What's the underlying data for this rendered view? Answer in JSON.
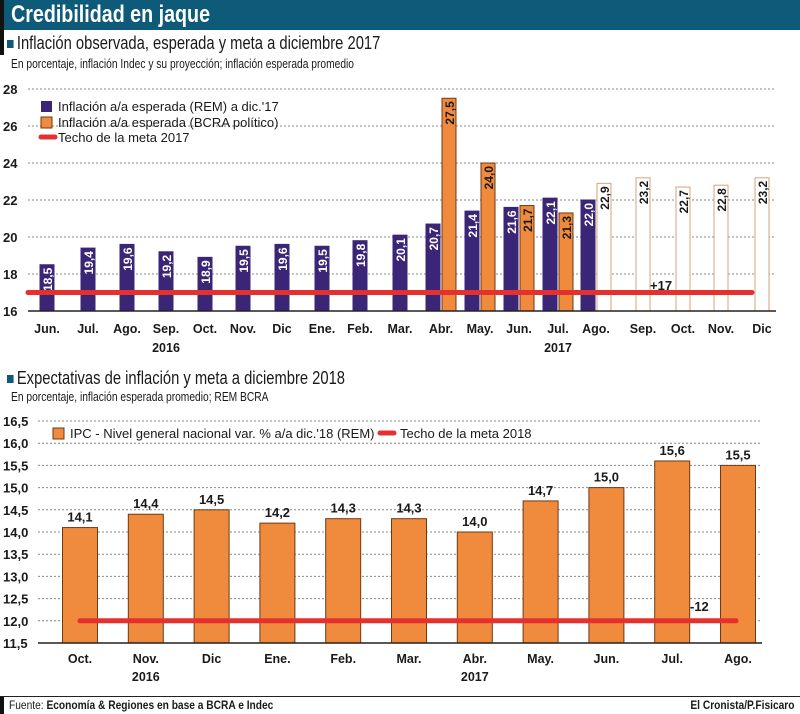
{
  "title": "Credibilidad en jaque",
  "colors": {
    "purple": "#3a2577",
    "orange": "#f08a3c",
    "red": "#e53030",
    "header": "#0d5b78",
    "projection_border": "#d7a27a"
  },
  "chart_data": [
    {
      "type": "bar",
      "title": "Inflación observada, esperada y meta a diciembre 2017",
      "subtitle": "En porcentaje, inflación Indec y su proyección; inflación esperada promedio",
      "categories": [
        "Jun.",
        "Jul.",
        "Ago.",
        "Sep.",
        "Oct.",
        "Nov.",
        "Dic",
        "Ene.",
        "Feb.",
        "Mar.",
        "Abr.",
        "May.",
        "Jun.",
        "Jul.",
        "Ago.",
        "Sep.",
        "Oct.",
        "Nov.",
        "Dic"
      ],
      "year_labels": [
        {
          "category_index": 3,
          "label": "2016"
        },
        {
          "category_index": 13,
          "label": "2017"
        }
      ],
      "ylim": [
        16,
        28
      ],
      "yticks": [
        16,
        18,
        20,
        22,
        24,
        26,
        28
      ],
      "grid": true,
      "legend_position": "top-left",
      "series": [
        {
          "name": "Inflación a/a esperada (REM) a dic.'17",
          "style": "purple",
          "values": [
            18.5,
            19.4,
            19.6,
            19.2,
            18.9,
            19.5,
            19.6,
            19.5,
            19.8,
            20.1,
            20.7,
            21.4,
            21.6,
            22.1,
            22.0,
            null,
            null,
            null,
            null
          ],
          "labels": [
            "18,5",
            "19,4",
            "19,6",
            "19,2",
            "18,9",
            "19,5",
            "19,6",
            "19,5",
            "19,8",
            "20,1",
            "20,7",
            "21,4",
            "21,6",
            "22,1",
            "22,0",
            null,
            null,
            null,
            null
          ]
        },
        {
          "name": "Inflación a/a esperada (BCRA político)",
          "style": "orange",
          "values": [
            null,
            null,
            null,
            null,
            null,
            null,
            null,
            null,
            null,
            null,
            27.5,
            24.0,
            21.7,
            21.3,
            null,
            null,
            null,
            null,
            null
          ],
          "labels": [
            null,
            null,
            null,
            null,
            null,
            null,
            null,
            null,
            null,
            null,
            "27,5",
            "24,0",
            "21,7",
            "21,3",
            null,
            null,
            null,
            null,
            null
          ]
        },
        {
          "style": "projection",
          "values": [
            null,
            null,
            null,
            null,
            null,
            null,
            null,
            null,
            null,
            null,
            null,
            null,
            null,
            null,
            22.9,
            23.2,
            22.7,
            22.8,
            23.2
          ],
          "labels": [
            null,
            null,
            null,
            null,
            null,
            null,
            null,
            null,
            null,
            null,
            null,
            null,
            null,
            null,
            "22,9",
            "23,2",
            "22,7",
            "22,8",
            "23,2"
          ]
        }
      ],
      "target": {
        "name": "Techo de la meta 2017",
        "value": 17
      },
      "annotation": "+17"
    },
    {
      "type": "bar",
      "title": "Expectativas de inflación y meta a diciembre 2018",
      "subtitle": "En porcentaje, inflación esperada promedio; REM BCRA",
      "categories": [
        "Oct.",
        "Nov.",
        "Dic",
        "Ene.",
        "Feb.",
        "Mar.",
        "Abr.",
        "May.",
        "Jun.",
        "Jul.",
        "Ago."
      ],
      "year_labels": [
        {
          "category_index": 1,
          "label": "2016"
        },
        {
          "category_index": 6,
          "label": "2017"
        }
      ],
      "ylim": [
        11.5,
        16.5
      ],
      "yticks": [
        "11,5",
        "12,0",
        "12,5",
        "13,0",
        "13,5",
        "14,0",
        "14,5",
        "15,0",
        "15,5",
        "16,0",
        "16,5"
      ],
      "grid": true,
      "legend_position": "top",
      "series": [
        {
          "name": "IPC - Nivel general nacional var. % a/a dic.'18 (REM)",
          "style": "orange",
          "values": [
            14.1,
            14.4,
            14.5,
            14.2,
            14.3,
            14.3,
            14.0,
            14.7,
            15.0,
            15.6,
            15.5
          ],
          "labels": [
            "14,1",
            "14,4",
            "14,5",
            "14,2",
            "14,3",
            "14,3",
            "14,0",
            "14,7",
            "15,0",
            "15,6",
            "15,5"
          ]
        }
      ],
      "target": {
        "name": "Techo de la meta 2018",
        "value": 12.0
      },
      "annotation": "-12"
    }
  ],
  "footer": {
    "source_label": "Fuente:",
    "source": "Economía & Regiones en base a BCRA e Indec",
    "credit": "El Cronista/P.Fisicaro"
  }
}
